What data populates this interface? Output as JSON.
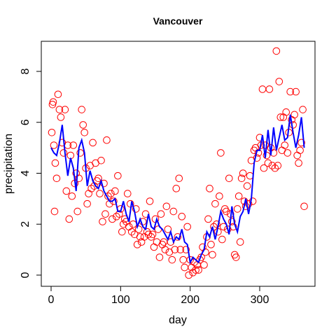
{
  "chart_data": {
    "type": "scatter",
    "title": "Vancouver",
    "xlabel": "day",
    "ylabel": "precipitation",
    "xlim": [
      0,
      365
    ],
    "ylim": [
      0,
      9
    ],
    "xticks": [
      0,
      100,
      200,
      300
    ],
    "yticks": [
      0,
      2,
      4,
      6,
      8
    ],
    "xtick_labels": [
      "0",
      "100",
      "200",
      "300"
    ],
    "ytick_labels": [
      "0",
      "2",
      "4",
      "6",
      "8"
    ],
    "grid": false,
    "legend": "none",
    "colors": {
      "points": "#ff0000",
      "curve": "#0000ff",
      "axes": "#000000"
    },
    "series": [
      {
        "type": "scatter",
        "x": [
          1,
          2,
          3,
          4,
          5,
          6,
          8,
          10,
          12,
          14,
          16,
          18,
          20,
          22,
          24,
          26,
          28,
          30,
          32,
          34,
          36,
          38,
          40,
          42,
          44,
          46,
          48,
          50,
          52,
          54,
          56,
          58,
          60,
          62,
          64,
          66,
          68,
          70,
          72,
          74,
          76,
          78,
          80,
          82,
          84,
          86,
          88,
          90,
          92,
          94,
          96,
          98,
          100,
          102,
          104,
          106,
          108,
          110,
          112,
          114,
          116,
          118,
          120,
          122,
          124,
          126,
          128,
          130,
          132,
          134,
          136,
          138,
          140,
          142,
          144,
          146,
          148,
          150,
          152,
          154,
          156,
          158,
          160,
          162,
          164,
          166,
          168,
          170,
          172,
          174,
          176,
          178,
          180,
          182,
          184,
          186,
          188,
          190,
          192,
          194,
          196,
          198,
          200,
          202,
          204,
          206,
          208,
          210,
          212,
          214,
          216,
          218,
          220,
          222,
          224,
          226,
          228,
          230,
          232,
          234,
          236,
          238,
          240,
          242,
          244,
          246,
          248,
          250,
          252,
          254,
          256,
          258,
          260,
          262,
          264,
          266,
          268,
          270,
          272,
          274,
          276,
          278,
          280,
          282,
          284,
          286,
          288,
          290,
          292,
          294,
          296,
          298,
          300,
          302,
          304,
          306,
          308,
          310,
          312,
          314,
          316,
          318,
          320,
          322,
          324,
          326,
          328,
          330,
          332,
          334,
          336,
          338,
          340,
          342,
          344,
          346,
          348,
          350,
          352,
          354,
          356,
          358,
          360,
          362,
          364
        ],
        "y": [
          5.6,
          6.7,
          6.8,
          5.1,
          2.5,
          4.4,
          3.8,
          7.1,
          6.5,
          6.2,
          5.2,
          4.8,
          6.5,
          3.3,
          5.1,
          2.2,
          4.7,
          3.1,
          5.1,
          3.6,
          4.0,
          2.5,
          3.8,
          4.8,
          6.5,
          5.9,
          5.6,
          4.2,
          2.8,
          3.2,
          4.3,
          3.4,
          5.2,
          3.5,
          4.4,
          3.7,
          3.8,
          3.2,
          4.5,
          2.1,
          3.6,
          2.4,
          5.3,
          3.1,
          2.8,
          3.2,
          2.2,
          2.9,
          3.3,
          2.3,
          3.9,
          2.4,
          2.6,
          1.7,
          2.0,
          2.2,
          2.1,
          3.2,
          1.9,
          2.8,
          1.7,
          2.0,
          1.6,
          2.6,
          1.2,
          1.8,
          1.5,
          1.3,
          2.1,
          1.5,
          2.4,
          1.7,
          1.6,
          2.9,
          1.5,
          1.6,
          1.1,
          2.2,
          1.3,
          1.8,
          0.7,
          2.4,
          1.2,
          1.3,
          1.0,
          2.7,
          1.8,
          0.9,
          1.3,
          0.6,
          2.5,
          1.0,
          3.4,
          1.5,
          3.8,
          1.0,
          2.3,
          0.6,
          0.3,
          1.0,
          1.9,
          0.0,
          0.6,
          0.3,
          0.1,
          0.5,
          0.2,
          0.4,
          0.2,
          0.6,
          0.7,
          1.1,
          0.4,
          0.9,
          1.5,
          2.2,
          3.4,
          1.2,
          0.8,
          1.9,
          2.8,
          2.0,
          1.7,
          3.1,
          4.8,
          1.4,
          1.9,
          2.6,
          2.5,
          1.8,
          3.8,
          2.4,
          2.1,
          1.9,
          0.8,
          0.7,
          2.6,
          3.1,
          1.3,
          3.8,
          4.0,
          2.9,
          2.7,
          3.5,
          2.8,
          3.9,
          4.5,
          2.9,
          4.9,
          5.0,
          4.6,
          4.8,
          5.4,
          5.1,
          7.3,
          4.2,
          5.1,
          4.7,
          4.4,
          7.3,
          5.0,
          4.3,
          4.8,
          4.2,
          8.8,
          4.3,
          7.6,
          6.2,
          4.9,
          6.2,
          5.1,
          6.4,
          4.8,
          5.6,
          7.2,
          6.1,
          5.9,
          6.3,
          7.2,
          4.7,
          4.4,
          4.9,
          5.2,
          6.5,
          2.7
        ]
      },
      {
        "type": "line",
        "x": [
          0,
          4,
          8,
          12,
          16,
          20,
          24,
          28,
          32,
          36,
          40,
          44,
          48,
          52,
          56,
          60,
          64,
          68,
          72,
          76,
          80,
          84,
          88,
          92,
          96,
          100,
          104,
          108,
          112,
          116,
          120,
          124,
          128,
          132,
          136,
          140,
          144,
          148,
          152,
          156,
          160,
          164,
          168,
          172,
          176,
          180,
          184,
          188,
          192,
          196,
          200,
          204,
          208,
          212,
          216,
          220,
          224,
          228,
          232,
          236,
          240,
          244,
          248,
          252,
          256,
          260,
          264,
          268,
          272,
          276,
          280,
          284,
          288,
          292,
          296,
          300,
          304,
          308,
          312,
          316,
          320,
          324,
          328,
          332,
          336,
          340,
          344,
          348,
          352,
          356,
          360,
          364
        ],
        "y": [
          5.0,
          4.8,
          4.7,
          5.2,
          5.9,
          4.8,
          3.9,
          4.6,
          4.2,
          3.3,
          5.0,
          5.3,
          4.8,
          3.5,
          4.1,
          3.7,
          3.5,
          3.4,
          3.7,
          3.3,
          3.1,
          2.9,
          2.9,
          3.0,
          2.5,
          2.5,
          2.9,
          2.4,
          2.1,
          2.9,
          2.5,
          1.9,
          2.2,
          1.9,
          1.8,
          2.4,
          1.9,
          1.8,
          2.2,
          1.9,
          1.8,
          1.6,
          1.4,
          1.7,
          1.3,
          1.5,
          1.4,
          1.8,
          1.3,
          1.2,
          0.5,
          0.7,
          0.6,
          0.5,
          0.8,
          1.0,
          1.7,
          1.5,
          1.9,
          1.4,
          1.9,
          2.5,
          2.2,
          2.0,
          1.6,
          2.7,
          2.0,
          1.7,
          2.3,
          2.5,
          3.0,
          2.4,
          3.0,
          4.4,
          4.9,
          4.9,
          5.5,
          4.6,
          5.7,
          4.7,
          5.8,
          4.9,
          5.4,
          5.9,
          5.3,
          5.4,
          6.3,
          5.6,
          5.0,
          5.5,
          6.2,
          5.0
        ]
      }
    ]
  }
}
